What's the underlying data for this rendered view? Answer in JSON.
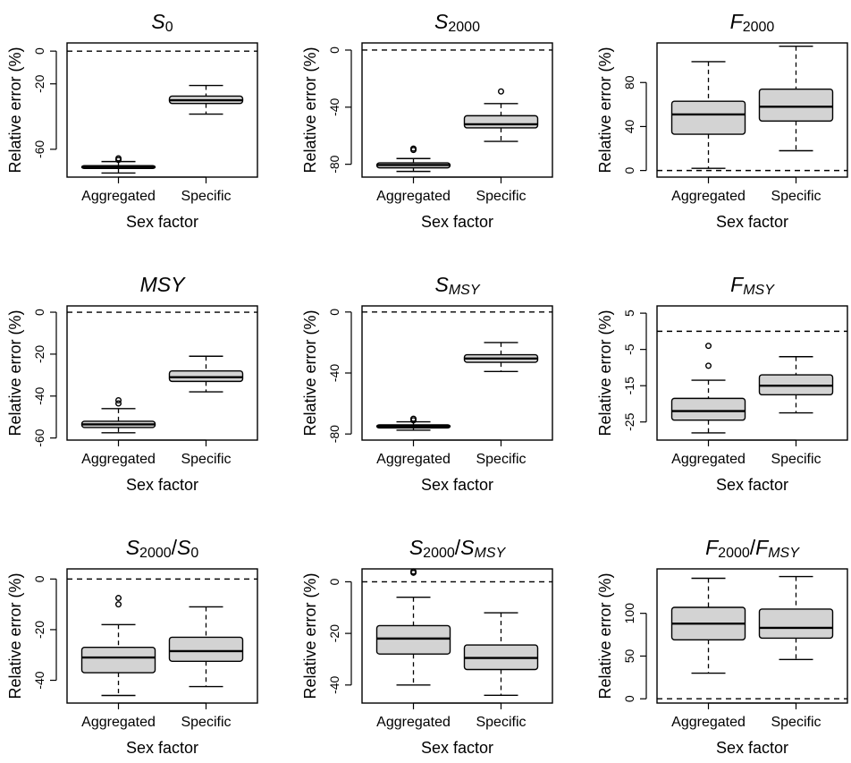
{
  "chart_data": [
    {
      "type": "box",
      "title_parts": [
        {
          "t": "S",
          "i": true
        },
        {
          "t": "0",
          "sub": true
        }
      ],
      "xlabel": "Sex factor",
      "ylabel": "Relative error (%)",
      "categories": [
        "Aggregated",
        "Specific"
      ],
      "ylim": [
        -77,
        5
      ],
      "yticks": [
        0,
        -20,
        -60
      ],
      "reference_line": 0,
      "boxes": [
        {
          "whislo": -74.5,
          "q1": -71.7,
          "med": -70.8,
          "q3": -70.0,
          "whishi": -67.5,
          "outliers": [
            -65.5,
            -66.5
          ]
        },
        {
          "whislo": -38.5,
          "q1": -32.0,
          "med": -30.0,
          "q3": -27.5,
          "whishi": -21.0,
          "outliers": []
        }
      ]
    },
    {
      "type": "box",
      "title_parts": [
        {
          "t": "S",
          "i": true
        },
        {
          "t": "2000",
          "sub": true
        }
      ],
      "xlabel": "Sex factor",
      "ylabel": "Relative error (%)",
      "categories": [
        "Aggregated",
        "Specific"
      ],
      "ylim": [
        -89,
        5
      ],
      "yticks": [
        0,
        -40,
        -80
      ],
      "reference_line": 0,
      "boxes": [
        {
          "whislo": -85.0,
          "q1": -82.5,
          "med": -80.5,
          "q3": -79.0,
          "whishi": -76.0,
          "outliers": [
            -69.0,
            -70.0
          ]
        },
        {
          "whislo": -64.0,
          "q1": -54.5,
          "med": -52.0,
          "q3": -46.0,
          "whishi": -37.5,
          "outliers": [
            -29.0
          ]
        }
      ]
    },
    {
      "type": "box",
      "title_parts": [
        {
          "t": "F",
          "i": true
        },
        {
          "t": "2000",
          "sub": true
        }
      ],
      "xlabel": "Sex factor",
      "ylabel": "Relative error (%)",
      "categories": [
        "Aggregated",
        "Specific"
      ],
      "ylim": [
        -6,
        116
      ],
      "yticks": [
        0,
        40,
        80
      ],
      "reference_line": 0,
      "boxes": [
        {
          "whislo": 2.0,
          "q1": 33.0,
          "med": 51.0,
          "q3": 63.0,
          "whishi": 99.0,
          "outliers": []
        },
        {
          "whislo": 18.0,
          "q1": 45.0,
          "med": 58.0,
          "q3": 74.0,
          "whishi": 113.0,
          "outliers": []
        }
      ]
    },
    {
      "type": "box",
      "title_parts": [
        {
          "t": "MSY",
          "i": true
        }
      ],
      "xlabel": "Sex factor",
      "ylabel": "Relative error (%)",
      "categories": [
        "Aggregated",
        "Specific"
      ],
      "ylim": [
        -61,
        3
      ],
      "yticks": [
        0,
        -20,
        -40,
        -60
      ],
      "reference_line": 0,
      "boxes": [
        {
          "whislo": -57.5,
          "q1": -55.0,
          "med": -53.5,
          "q3": -52.0,
          "whishi": -46.0,
          "outliers": [
            -42.0,
            -43.5
          ]
        },
        {
          "whislo": -38.0,
          "q1": -33.0,
          "med": -31.0,
          "q3": -28.0,
          "whishi": -21.0,
          "outliers": []
        }
      ]
    },
    {
      "type": "box",
      "title_parts": [
        {
          "t": "S",
          "i": true
        },
        {
          "t": "MSY",
          "sub": true,
          "i": true
        }
      ],
      "xlabel": "Sex factor",
      "ylabel": "Relative error (%)",
      "categories": [
        "Aggregated",
        "Specific"
      ],
      "ylim": [
        -84,
        4
      ],
      "yticks": [
        0,
        -40,
        -80
      ],
      "reference_line": 0,
      "boxes": [
        {
          "whislo": -77.5,
          "q1": -76.0,
          "med": -75.0,
          "q3": -74.0,
          "whishi": -72.0,
          "outliers": [
            -70.0,
            -71.0
          ]
        },
        {
          "whislo": -39.0,
          "q1": -33.0,
          "med": -30.5,
          "q3": -28.0,
          "whishi": -20.0,
          "outliers": []
        }
      ]
    },
    {
      "type": "box",
      "title_parts": [
        {
          "t": "F",
          "i": true
        },
        {
          "t": "MSY",
          "sub": true,
          "i": true
        }
      ],
      "xlabel": "Sex factor",
      "ylabel": "Relative error (%)",
      "categories": [
        "Aggregated",
        "Specific"
      ],
      "ylim": [
        -30,
        7
      ],
      "yticks": [
        5,
        -5,
        -15,
        -25
      ],
      "reference_line": 0,
      "boxes": [
        {
          "whislo": -28.0,
          "q1": -24.5,
          "med": -22.0,
          "q3": -18.5,
          "whishi": -13.5,
          "outliers": [
            -9.5,
            -4.0
          ]
        },
        {
          "whislo": -22.5,
          "q1": -17.5,
          "med": -15.0,
          "q3": -12.0,
          "whishi": -7.0,
          "outliers": []
        }
      ]
    },
    {
      "type": "box",
      "title_parts": [
        {
          "t": "S",
          "i": true
        },
        {
          "t": "2000",
          "sub": true
        },
        {
          "t": "/"
        },
        {
          "t": "S",
          "i": true
        },
        {
          "t": "0",
          "sub": true
        }
      ],
      "xlabel": "Sex factor",
      "ylabel": "Relative error (%)",
      "categories": [
        "Aggregated",
        "Specific"
      ],
      "ylim": [
        -49,
        4
      ],
      "yticks": [
        0,
        -20,
        -40
      ],
      "reference_line": 0,
      "boxes": [
        {
          "whislo": -46.0,
          "q1": -37.0,
          "med": -31.0,
          "q3": -27.0,
          "whishi": -18.0,
          "outliers": [
            -10.0,
            -7.5
          ]
        },
        {
          "whislo": -42.5,
          "q1": -32.5,
          "med": -28.5,
          "q3": -23.0,
          "whishi": -11.0,
          "outliers": []
        }
      ]
    },
    {
      "type": "box",
      "title_parts": [
        {
          "t": "S",
          "i": true
        },
        {
          "t": "2000",
          "sub": true
        },
        {
          "t": "/"
        },
        {
          "t": "S",
          "i": true
        },
        {
          "t": "MSY",
          "sub": true,
          "i": true
        }
      ],
      "xlabel": "Sex factor",
      "ylabel": "Relative error (%)",
      "categories": [
        "Aggregated",
        "Specific"
      ],
      "ylim": [
        -47,
        5
      ],
      "yticks": [
        0,
        -20,
        -40
      ],
      "reference_line": 0,
      "boxes": [
        {
          "whislo": -40.0,
          "q1": -28.0,
          "med": -22.0,
          "q3": -17.0,
          "whishi": -6.0,
          "outliers": [
            3.5,
            4.0
          ]
        },
        {
          "whislo": -44.0,
          "q1": -34.0,
          "med": -29.5,
          "q3": -24.5,
          "whishi": -12.0,
          "outliers": []
        }
      ]
    },
    {
      "type": "box",
      "title_parts": [
        {
          "t": "F",
          "i": true
        },
        {
          "t": "2000",
          "sub": true
        },
        {
          "t": "/"
        },
        {
          "t": "F",
          "i": true
        },
        {
          "t": "MSY",
          "sub": true,
          "i": true
        }
      ],
      "xlabel": "Sex factor",
      "ylabel": "Relative error (%)",
      "categories": [
        "Aggregated",
        "Specific"
      ],
      "ylim": [
        -5,
        152
      ],
      "yticks": [
        0,
        50,
        100
      ],
      "reference_line": 0,
      "boxes": [
        {
          "whislo": 30.0,
          "q1": 69.0,
          "med": 88.0,
          "q3": 107.0,
          "whishi": 141.0,
          "outliers": []
        },
        {
          "whislo": 46.0,
          "q1": 71.0,
          "med": 83.0,
          "q3": 105.0,
          "whishi": 143.0,
          "outliers": []
        }
      ]
    }
  ]
}
